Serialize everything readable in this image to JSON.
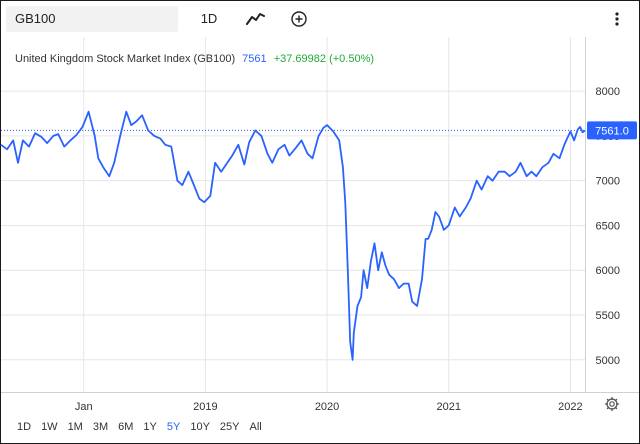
{
  "toolbar": {
    "symbol": "GB100",
    "interval": "1D",
    "chart_type_icon": "line-chart-icon",
    "compare_icon": "add-circle-icon",
    "more_icon": "vertical-ellipsis-icon"
  },
  "legend": {
    "name": "United Kingdom Stock Market Index (GB100)",
    "last": "7561",
    "change": "+37.69982 (+0.50%)"
  },
  "price_label": "7561.0",
  "range_buttons": [
    "1D",
    "1W",
    "1M",
    "3M",
    "6M",
    "1Y",
    "5Y",
    "10Y",
    "25Y",
    "All"
  ],
  "active_range": "5Y",
  "colors": {
    "line": "#2962ff",
    "positive": "#22ab3a",
    "grid": "#e6e6e6"
  },
  "chart_data": {
    "type": "line",
    "title": "",
    "xlabel": "",
    "ylabel": "",
    "xlim": [
      2017.32,
      2022.12
    ],
    "ylim": [
      4640,
      8180
    ],
    "y_ticks": [
      5000,
      5500,
      6000,
      6500,
      7000,
      7500,
      8000
    ],
    "x_ticks": [
      {
        "label": "Jan",
        "x": 2018.0
      },
      {
        "label": "2019",
        "x": 2019.0
      },
      {
        "label": "2020",
        "x": 2020.0
      },
      {
        "label": "2021",
        "x": 2021.0
      },
      {
        "label": "2022",
        "x": 2022.0
      }
    ],
    "grid": true,
    "reference_line": 7561,
    "series": [
      {
        "x": [
          2017.32,
          2017.37,
          2017.42,
          2017.46,
          2017.5,
          2017.55,
          2017.6,
          2017.65,
          2017.7,
          2017.75,
          2017.79,
          2017.84,
          2017.89,
          2017.94,
          2017.99,
          2018.04,
          2018.09,
          2018.12,
          2018.16,
          2018.21,
          2018.25,
          2018.3,
          2018.35,
          2018.39,
          2018.43,
          2018.48,
          2018.53,
          2018.58,
          2018.63,
          2018.67,
          2018.72,
          2018.77,
          2018.81,
          2018.86,
          2018.9,
          2018.95,
          2018.99,
          2019.04,
          2019.08,
          2019.13,
          2019.18,
          2019.22,
          2019.27,
          2019.32,
          2019.36,
          2019.41,
          2019.46,
          2019.51,
          2019.55,
          2019.6,
          2019.65,
          2019.69,
          2019.74,
          2019.79,
          2019.84,
          2019.88,
          2019.93,
          2019.97,
          2020.0,
          2020.05,
          2020.1,
          2020.13,
          2020.15,
          2020.17,
          2020.19,
          2020.21,
          2020.22,
          2020.25,
          2020.28,
          2020.3,
          2020.33,
          2020.36,
          2020.39,
          2020.42,
          2020.45,
          2020.48,
          2020.51,
          2020.55,
          2020.59,
          2020.63,
          2020.67,
          2020.7,
          2020.74,
          2020.78,
          2020.81,
          2020.83,
          2020.86,
          2020.89,
          2020.92,
          2020.96,
          2021.0,
          2021.05,
          2021.09,
          2021.14,
          2021.18,
          2021.23,
          2021.27,
          2021.32,
          2021.36,
          2021.41,
          2021.46,
          2021.5,
          2021.55,
          2021.59,
          2021.64,
          2021.68,
          2021.72,
          2021.77,
          2021.82,
          2021.86,
          2021.91,
          2021.95,
          2022.0,
          2022.03,
          2022.06,
          2022.08,
          2022.1,
          2022.12
        ],
        "y": [
          7400,
          7350,
          7450,
          7200,
          7450,
          7380,
          7530,
          7490,
          7420,
          7500,
          7520,
          7380,
          7450,
          7510,
          7600,
          7770,
          7500,
          7250,
          7150,
          7050,
          7200,
          7500,
          7770,
          7620,
          7660,
          7730,
          7560,
          7500,
          7470,
          7400,
          7380,
          7000,
          6950,
          7100,
          6970,
          6800,
          6760,
          6830,
          7200,
          7100,
          7200,
          7280,
          7400,
          7180,
          7430,
          7560,
          7500,
          7300,
          7200,
          7350,
          7400,
          7280,
          7360,
          7450,
          7300,
          7250,
          7500,
          7590,
          7620,
          7550,
          7450,
          7150,
          6750,
          6000,
          5200,
          5000,
          5300,
          5600,
          5700,
          6000,
          5800,
          6100,
          6300,
          6000,
          6200,
          6050,
          5950,
          5900,
          5800,
          5850,
          5850,
          5650,
          5600,
          5900,
          6350,
          6350,
          6450,
          6650,
          6600,
          6450,
          6500,
          6700,
          6600,
          6700,
          6800,
          7000,
          6900,
          7050,
          7000,
          7100,
          7100,
          7050,
          7100,
          7200,
          7050,
          7100,
          7050,
          7150,
          7200,
          7300,
          7250,
          7400,
          7550,
          7450,
          7570,
          7600,
          7540,
          7561
        ]
      }
    ]
  }
}
